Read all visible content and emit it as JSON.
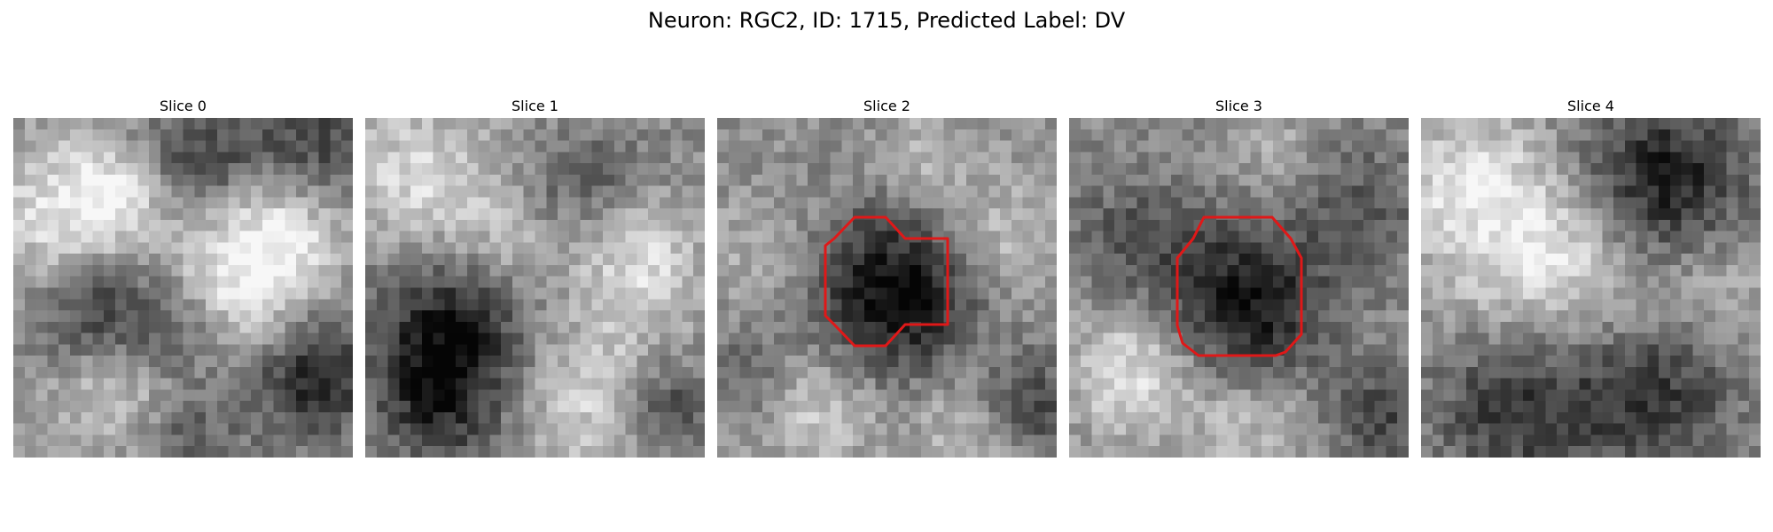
{
  "figure": {
    "title": "Neuron: RGC2, ID: 1715, Predicted Label: DV"
  },
  "panels": [
    {
      "title": "Slice 0",
      "has_contour": false
    },
    {
      "title": "Slice 1",
      "has_contour": false
    },
    {
      "title": "Slice 2",
      "has_contour": true
    },
    {
      "title": "Slice 3",
      "has_contour": true
    },
    {
      "title": "Slice 4",
      "has_contour": false
    }
  ],
  "contour_color": "#e01818",
  "image_colormap": "gray"
}
